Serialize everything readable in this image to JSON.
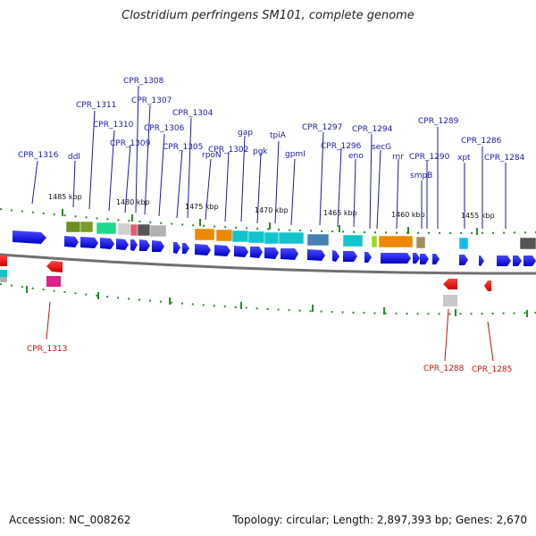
{
  "title": "Clostridium perfringens SM101, complete genome",
  "footer": {
    "accession": "Accession: NC_008262",
    "summary": "Topology: circular; Length: 2,897,393 bp; Genes: 2,670"
  },
  "scale_ticks": [
    "1485 kbp",
    "1480 kbp",
    "1475 kbp",
    "1470 kbp",
    "1465 kbp",
    "1460 kbp",
    "1455 kbp"
  ],
  "gene_labels_top": [
    "CPR_1316",
    "ddl",
    "CPR_1311",
    "CPR_1310",
    "CPR_1309",
    "CPR_1308",
    "CPR_1307",
    "CPR_1306",
    "CPR_1305",
    "CPR_1304",
    "rpoN",
    "CPR_1302",
    "gap",
    "pgk",
    "tpiA",
    "gpmI",
    "CPR_1297",
    "CPR_1296",
    "eno",
    "CPR_1294",
    "secG",
    "rnr",
    "smpB",
    "CPR_1290",
    "CPR_1289",
    "xpt",
    "CPR_1286",
    "CPR_1284"
  ],
  "gene_labels_bottom": [
    "CPR_1313",
    "CPR_1288",
    "CPR_1285"
  ],
  "colors": {
    "forward_strand": "#0000dd",
    "reverse_strand": "#ee0000",
    "label_forward": "#1a1aa6",
    "label_reverse": "#cc1111",
    "backbone": "#707070",
    "tick": "#2a8a2a"
  }
}
